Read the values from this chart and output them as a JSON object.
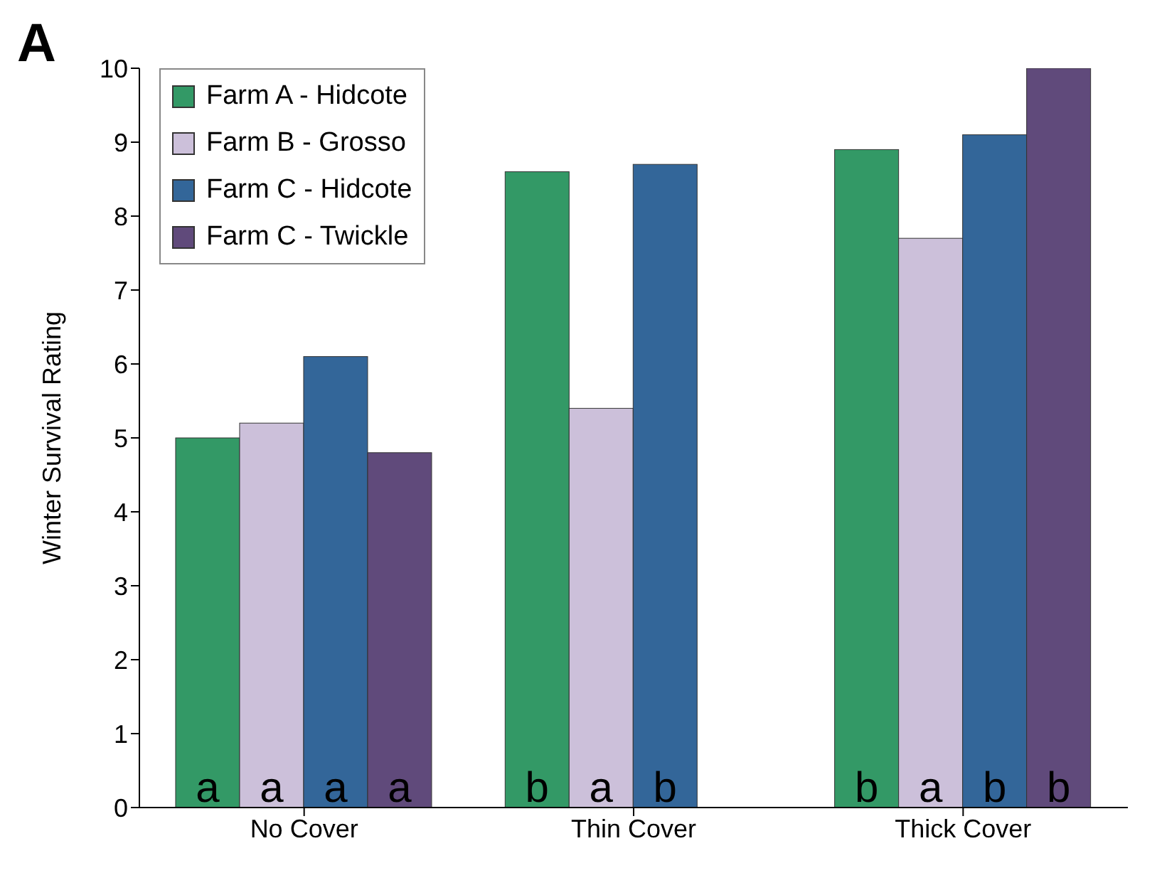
{
  "chart_data": {
    "type": "bar",
    "ylabel": "Winter Survival Rating",
    "categories": [
      "No Cover",
      "Thin Cover",
      "Thick Cover"
    ],
    "series": [
      {
        "name": "Farm A - Hidcote",
        "color": "#339966",
        "values": [
          5.0,
          8.6,
          8.9
        ],
        "value_labels": [
          "a",
          "b",
          "b"
        ]
      },
      {
        "name": "Farm B - Grosso",
        "color": "#ccc0da",
        "values": [
          5.2,
          5.4,
          7.7
        ],
        "value_labels": [
          "a",
          "a",
          "a"
        ]
      },
      {
        "name": "Farm C - Hidcote",
        "color": "#336699",
        "values": [
          6.1,
          8.7,
          9.1
        ],
        "value_labels": [
          "a",
          "b",
          "b"
        ]
      },
      {
        "name": "Farm C - Twickle",
        "color": "#604a7b",
        "values": [
          4.8,
          null,
          10.0
        ],
        "value_labels": [
          "a",
          null,
          "b"
        ]
      }
    ],
    "ylim": [
      0,
      10
    ],
    "yticks": [
      0,
      1,
      2,
      3,
      4,
      5,
      6,
      7,
      8,
      9,
      10
    ],
    "legend": "top left",
    "annotations": [
      "A"
    ]
  }
}
